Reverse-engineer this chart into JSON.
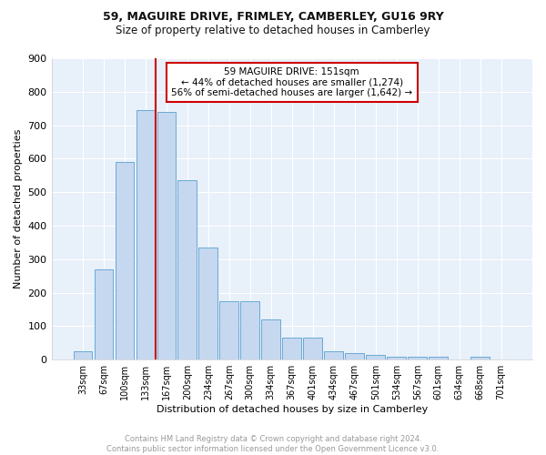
{
  "title1": "59, MAGUIRE DRIVE, FRIMLEY, CAMBERLEY, GU16 9RY",
  "title2": "Size of property relative to detached houses in Camberley",
  "xlabel": "Distribution of detached houses by size in Camberley",
  "ylabel": "Number of detached properties",
  "bar_labels": [
    "33sqm",
    "67sqm",
    "100sqm",
    "133sqm",
    "167sqm",
    "200sqm",
    "234sqm",
    "267sqm",
    "300sqm",
    "334sqm",
    "367sqm",
    "401sqm",
    "434sqm",
    "467sqm",
    "501sqm",
    "534sqm",
    "567sqm",
    "601sqm",
    "634sqm",
    "668sqm",
    "701sqm"
  ],
  "bar_values": [
    25,
    270,
    590,
    745,
    740,
    535,
    335,
    175,
    175,
    120,
    65,
    65,
    25,
    20,
    15,
    10,
    10,
    10,
    0,
    10,
    0
  ],
  "bar_color": "#c5d8f0",
  "bar_edge_color": "#6aaad4",
  "vline_x": 3.5,
  "vline_color": "#cc0000",
  "annotation_text": "59 MAGUIRE DRIVE: 151sqm\n← 44% of detached houses are smaller (1,274)\n56% of semi-detached houses are larger (1,642) →",
  "annotation_box_color": "#ffffff",
  "annotation_box_edge": "#cc0000",
  "ylim": [
    0,
    900
  ],
  "yticks": [
    0,
    100,
    200,
    300,
    400,
    500,
    600,
    700,
    800,
    900
  ],
  "bg_color": "#e8f0fa",
  "footer_text": "Contains HM Land Registry data © Crown copyright and database right 2024.\nContains public sector information licensed under the Open Government Licence v3.0.",
  "footer_color": "#999999"
}
